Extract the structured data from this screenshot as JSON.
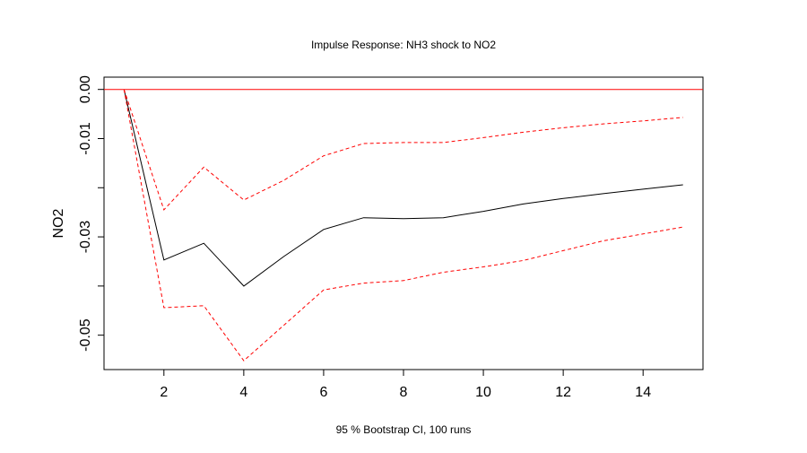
{
  "chart_data": {
    "type": "line",
    "title": "Impulse Response: NH3 shock to NO2",
    "xlabel": "95 % Bootstrap CI,  100 runs",
    "ylabel": "NO2",
    "xlim": [
      0.5,
      15.5
    ],
    "ylim": [
      -0.057,
      0.0025
    ],
    "x": [
      1,
      2,
      3,
      4,
      5,
      6,
      7,
      8,
      9,
      10,
      11,
      12,
      13,
      14,
      15
    ],
    "x_ticks": [
      2,
      4,
      6,
      8,
      10,
      12,
      14
    ],
    "x_tick_labels": [
      "2",
      "4",
      "6",
      "8",
      "10",
      "12",
      "14"
    ],
    "y_ticks": [
      0.0,
      -0.01,
      -0.02,
      -0.03,
      -0.04,
      -0.05
    ],
    "y_tick_labels": [
      "0.00",
      "-0.01",
      "",
      "-0.03",
      "",
      "-0.05"
    ],
    "grid": false,
    "legend": "none",
    "zero_line": {
      "value": 0.0,
      "color": "#ff0000"
    },
    "series": [
      {
        "role": "irf",
        "color": "#000000",
        "dash": "solid",
        "values": [
          0.0,
          -0.0347,
          -0.0313,
          -0.04,
          -0.034,
          -0.0285,
          -0.0261,
          -0.0263,
          -0.0261,
          -0.0248,
          -0.0233,
          -0.0222,
          -0.0212,
          -0.0203,
          -0.0194
        ]
      },
      {
        "role": "upper",
        "color": "#ff0000",
        "dash": "dashed",
        "values": [
          0.0,
          -0.0245,
          -0.0158,
          -0.0225,
          -0.0185,
          -0.0135,
          -0.011,
          -0.0108,
          -0.0108,
          -0.0098,
          -0.0087,
          -0.0078,
          -0.007,
          -0.0064,
          -0.0057
        ]
      },
      {
        "role": "lower",
        "color": "#ff0000",
        "dash": "dashed",
        "values": [
          0.0,
          -0.0444,
          -0.044,
          -0.0552,
          -0.048,
          -0.0408,
          -0.0394,
          -0.0389,
          -0.0372,
          -0.0361,
          -0.0348,
          -0.0328,
          -0.0308,
          -0.0294,
          -0.028
        ]
      }
    ]
  }
}
